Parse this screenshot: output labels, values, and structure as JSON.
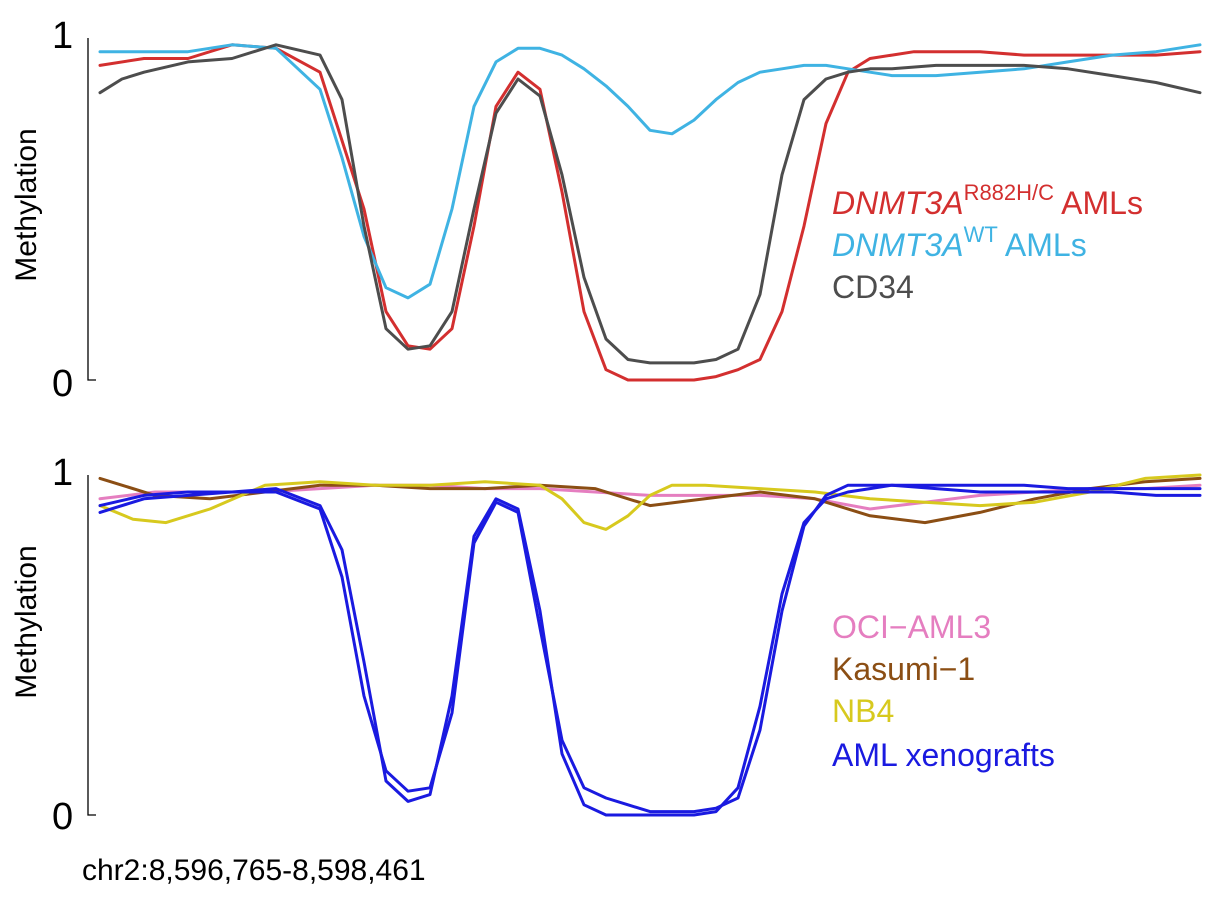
{
  "chart_data": [
    {
      "type": "line",
      "ylabel": "Methylation",
      "ylim": [
        0,
        1
      ],
      "yticks": [
        "1",
        "0"
      ],
      "legend_position": "right",
      "legend": [
        {
          "italic": "DNMT3A",
          "sup": "R882H/C",
          "rest": " AMLs",
          "color": "#d32f2f"
        },
        {
          "italic": "DNMT3A",
          "sup": "WT",
          "rest": " AMLs",
          "color": "#3fb3e3"
        },
        {
          "italic": "",
          "sup": "",
          "rest": "CD34",
          "color": "#4d4d4d"
        }
      ],
      "series": [
        {
          "color": "#d32f2f",
          "x": [
            0,
            4,
            8,
            12,
            16,
            20,
            24,
            26,
            28,
            30,
            32,
            34,
            36,
            38,
            40,
            42,
            44,
            46,
            48,
            50,
            52,
            54,
            56,
            58,
            60,
            62,
            64,
            66,
            68,
            70,
            72,
            74,
            76,
            78,
            80,
            84,
            88,
            92,
            96,
            100
          ],
          "y": [
            0.92,
            0.94,
            0.94,
            0.98,
            0.97,
            0.9,
            0.5,
            0.2,
            0.1,
            0.09,
            0.15,
            0.45,
            0.8,
            0.9,
            0.85,
            0.55,
            0.2,
            0.03,
            0,
            0,
            0,
            0,
            0.01,
            0.03,
            0.06,
            0.2,
            0.45,
            0.75,
            0.9,
            0.94,
            0.95,
            0.96,
            0.96,
            0.96,
            0.96,
            0.95,
            0.95,
            0.95,
            0.95,
            0.96
          ]
        },
        {
          "color": "#3fb3e3",
          "x": [
            0,
            4,
            8,
            12,
            16,
            20,
            22,
            24,
            26,
            28,
            30,
            32,
            34,
            36,
            38,
            40,
            42,
            44,
            46,
            48,
            50,
            52,
            54,
            56,
            58,
            60,
            62,
            64,
            66,
            68,
            70,
            72,
            74,
            76,
            80,
            84,
            88,
            92,
            96,
            100
          ],
          "y": [
            0.96,
            0.96,
            0.96,
            0.98,
            0.97,
            0.85,
            0.65,
            0.42,
            0.27,
            0.24,
            0.28,
            0.5,
            0.8,
            0.93,
            0.97,
            0.97,
            0.95,
            0.91,
            0.86,
            0.8,
            0.73,
            0.72,
            0.76,
            0.82,
            0.87,
            0.9,
            0.91,
            0.92,
            0.92,
            0.91,
            0.9,
            0.89,
            0.89,
            0.89,
            0.9,
            0.91,
            0.93,
            0.95,
            0.96,
            0.98
          ]
        },
        {
          "color": "#4d4d4d",
          "x": [
            0,
            2,
            4,
            8,
            12,
            16,
            20,
            22,
            24,
            26,
            28,
            30,
            32,
            34,
            36,
            38,
            40,
            42,
            44,
            46,
            48,
            50,
            52,
            54,
            56,
            58,
            60,
            62,
            64,
            66,
            68,
            70,
            72,
            76,
            80,
            84,
            88,
            92,
            96,
            100
          ],
          "y": [
            0.84,
            0.88,
            0.9,
            0.93,
            0.94,
            0.98,
            0.95,
            0.82,
            0.45,
            0.15,
            0.09,
            0.1,
            0.2,
            0.5,
            0.78,
            0.88,
            0.83,
            0.6,
            0.3,
            0.12,
            0.06,
            0.05,
            0.05,
            0.05,
            0.06,
            0.09,
            0.25,
            0.6,
            0.82,
            0.88,
            0.9,
            0.91,
            0.91,
            0.92,
            0.92,
            0.92,
            0.91,
            0.89,
            0.87,
            0.84
          ]
        }
      ]
    },
    {
      "type": "line",
      "ylabel": "Methylation",
      "ylim": [
        0,
        1
      ],
      "yticks": [
        "1",
        "0"
      ],
      "legend_position": "right",
      "legend": [
        {
          "italic": "",
          "sup": "",
          "rest": "OCI−AML3",
          "color": "#e57ec0"
        },
        {
          "italic": "",
          "sup": "",
          "rest": "Kasumi−1",
          "color": "#8b4e14"
        },
        {
          "italic": "",
          "sup": "",
          "rest": "NB4",
          "color": "#d7c91e"
        },
        {
          "italic": "",
          "sup": "",
          "rest": "AML xenografts",
          "color": "#1a1ae0"
        }
      ],
      "series": [
        {
          "color": "#e57ec0",
          "x": [
            0,
            5,
            10,
            15,
            20,
            25,
            30,
            35,
            40,
            45,
            50,
            55,
            60,
            65,
            70,
            75,
            80,
            85,
            90,
            95,
            100
          ],
          "y": [
            0.93,
            0.95,
            0.95,
            0.95,
            0.96,
            0.97,
            0.97,
            0.96,
            0.96,
            0.95,
            0.94,
            0.94,
            0.94,
            0.93,
            0.9,
            0.92,
            0.94,
            0.95,
            0.96,
            0.96,
            0.97
          ]
        },
        {
          "color": "#8b4e14",
          "x": [
            0,
            5,
            10,
            15,
            20,
            25,
            30,
            35,
            40,
            45,
            50,
            55,
            60,
            65,
            70,
            75,
            80,
            85,
            90,
            95,
            100
          ],
          "y": [
            0.99,
            0.94,
            0.93,
            0.95,
            0.97,
            0.97,
            0.96,
            0.96,
            0.97,
            0.96,
            0.91,
            0.93,
            0.95,
            0.93,
            0.88,
            0.86,
            0.89,
            0.93,
            0.96,
            0.98,
            0.99
          ]
        },
        {
          "color": "#d7c91e",
          "x": [
            0,
            3,
            6,
            10,
            15,
            20,
            25,
            30,
            35,
            40,
            42,
            44,
            46,
            48,
            50,
            52,
            55,
            60,
            65,
            70,
            75,
            80,
            85,
            90,
            95,
            100
          ],
          "y": [
            0.91,
            0.87,
            0.86,
            0.9,
            0.97,
            0.98,
            0.97,
            0.97,
            0.98,
            0.97,
            0.93,
            0.86,
            0.84,
            0.88,
            0.94,
            0.97,
            0.97,
            0.96,
            0.95,
            0.93,
            0.92,
            0.91,
            0.92,
            0.95,
            0.99,
            1.0
          ]
        },
        {
          "color": "#1a1ae0",
          "x": [
            0,
            4,
            8,
            12,
            16,
            20,
            22,
            24,
            26,
            28,
            30,
            32,
            34,
            36,
            38,
            40,
            42,
            44,
            46,
            48,
            50,
            52,
            54,
            56,
            58,
            60,
            62,
            64,
            66,
            68,
            70,
            72,
            76,
            80,
            84,
            88,
            92,
            96,
            100
          ],
          "y": [
            0.91,
            0.94,
            0.95,
            0.95,
            0.95,
            0.9,
            0.7,
            0.35,
            0.13,
            0.07,
            0.08,
            0.3,
            0.8,
            0.92,
            0.89,
            0.55,
            0.22,
            0.08,
            0.05,
            0.03,
            0.01,
            0.01,
            0.01,
            0.02,
            0.05,
            0.25,
            0.6,
            0.85,
            0.94,
            0.97,
            0.97,
            0.97,
            0.96,
            0.95,
            0.95,
            0.95,
            0.95,
            0.94,
            0.94
          ]
        },
        {
          "color": "#1a1ae0",
          "x": [
            0,
            4,
            8,
            12,
            16,
            20,
            22,
            24,
            26,
            28,
            30,
            32,
            34,
            36,
            38,
            40,
            42,
            44,
            46,
            48,
            50,
            52,
            54,
            56,
            58,
            60,
            62,
            64,
            66,
            68,
            70,
            72,
            76,
            80,
            84,
            88,
            92,
            96,
            100
          ],
          "y": [
            0.89,
            0.93,
            0.94,
            0.95,
            0.96,
            0.91,
            0.78,
            0.45,
            0.1,
            0.04,
            0.06,
            0.35,
            0.82,
            0.93,
            0.9,
            0.6,
            0.18,
            0.03,
            0,
            0,
            0,
            0,
            0,
            0.01,
            0.08,
            0.32,
            0.65,
            0.86,
            0.93,
            0.95,
            0.96,
            0.97,
            0.97,
            0.97,
            0.97,
            0.96,
            0.96,
            0.96,
            0.96
          ]
        }
      ]
    }
  ],
  "region_label": "chr2:8,596,765-8,598,461"
}
